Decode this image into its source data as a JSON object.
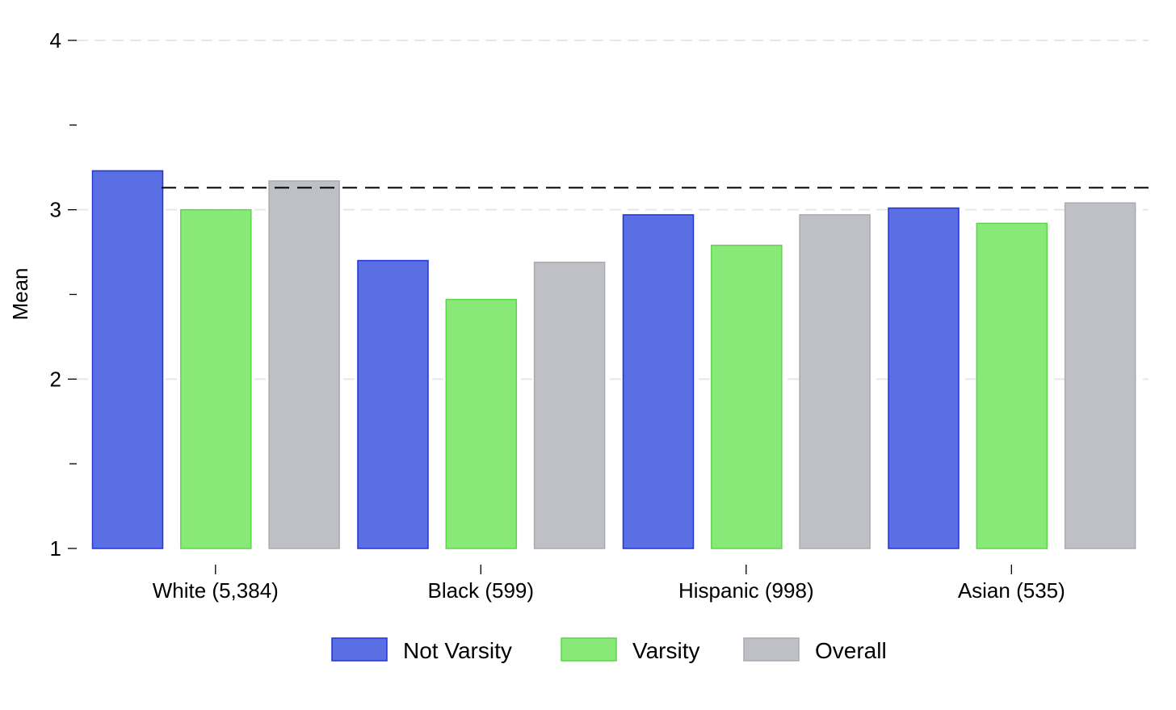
{
  "chart_data": {
    "type": "bar",
    "title": "",
    "xlabel": "",
    "ylabel": "Mean",
    "ylim": [
      1,
      4
    ],
    "y_ticks": [
      {
        "value": 1,
        "label": "1"
      },
      {
        "value": 1.5,
        "label": ""
      },
      {
        "value": 2,
        "label": "2"
      },
      {
        "value": 2.5,
        "label": ""
      },
      {
        "value": 3,
        "label": "3"
      },
      {
        "value": 3.5,
        "label": ""
      },
      {
        "value": 4,
        "label": "4"
      }
    ],
    "grid": true,
    "reference_line": {
      "value": 3.13,
      "style": "dashed"
    },
    "categories": [
      "White (5,384)",
      "Black (599)",
      "Hispanic (998)",
      "Asian (535)"
    ],
    "series": [
      {
        "name": "Not Varsity",
        "values": [
          3.23,
          2.7,
          2.97,
          3.01
        ],
        "color": "#5a6fe4",
        "stroke": "#2233d6"
      },
      {
        "name": "Varsity",
        "values": [
          3.0,
          2.47,
          2.79,
          2.92
        ],
        "color": "#88e878",
        "stroke": "#5ed64c"
      },
      {
        "name": "Overall",
        "values": [
          3.17,
          2.69,
          2.97,
          3.04
        ],
        "color": "#bfc0c5",
        "stroke": "#a9aab0"
      }
    ],
    "legend_position": "bottom"
  }
}
